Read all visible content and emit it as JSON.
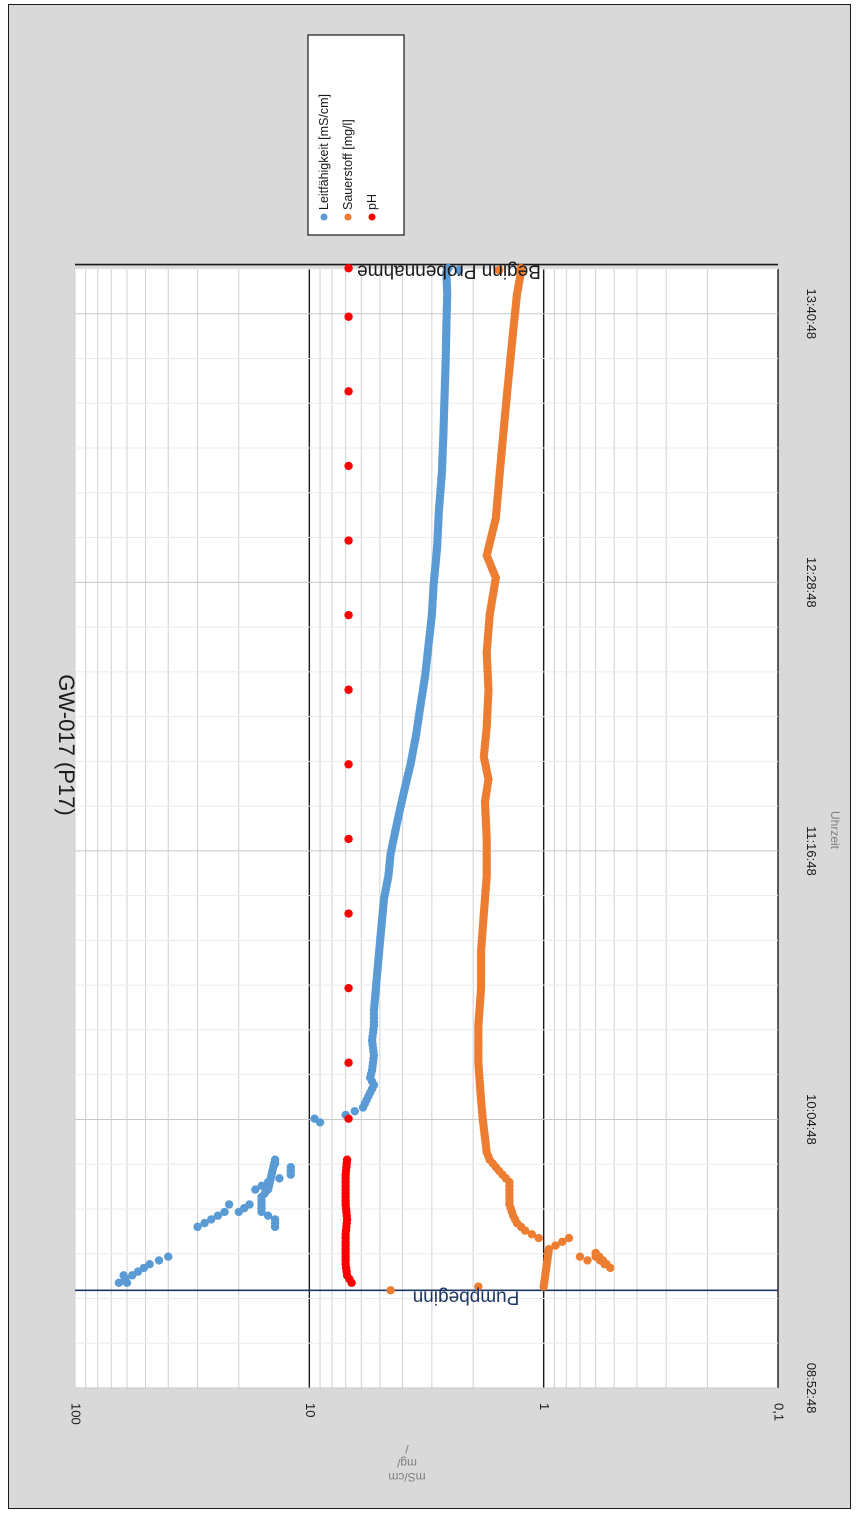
{
  "chart_data": {
    "type": "scatter",
    "title": "GW-017 (P17)",
    "xlabel": "Uhrzeit",
    "ylabel": "mS/cm\nmg/\n/",
    "yscale": "log",
    "ylim": [
      0.1,
      100
    ],
    "yticks": [
      "0,1",
      "1",
      "10",
      "100"
    ],
    "xlim": [
      "08:52:48",
      "13:52:48"
    ],
    "xticks": [
      "08:52:48",
      "10:04:48",
      "11:16:48",
      "12:28:48",
      "13:40:48"
    ],
    "grid": true,
    "legend_position": "top-right",
    "annotations": [
      {
        "label": "Pumpbeginn",
        "x": "09:19:00"
      },
      {
        "label": "Beginn Probennahme",
        "x": "13:54:00"
      }
    ],
    "series": [
      {
        "name": "Leitfähigkeit [mS/cm]",
        "color": "#5b9bd5",
        "points": [
          [
            "09:21:00",
            65
          ],
          [
            "09:21:00",
            60
          ],
          [
            "09:23:00",
            62
          ],
          [
            "09:23:00",
            57
          ],
          [
            "09:26:00",
            48
          ],
          [
            "09:28:00",
            40
          ],
          [
            "09:36:00",
            30
          ],
          [
            "09:37:00",
            28
          ],
          [
            "09:40:00",
            23
          ],
          [
            "09:40:00",
            20
          ],
          [
            "09:42:00",
            18
          ],
          [
            "09:42:00",
            22
          ],
          [
            "09:46:00",
            17
          ],
          [
            "09:48:00",
            15
          ],
          [
            "09:50:00",
            12
          ],
          [
            "09:52:00",
            12
          ],
          [
            "09:53:00",
            14
          ],
          [
            "09:54:00",
            14
          ],
          [
            "09:46:00",
            15
          ],
          [
            "09:44:00",
            16
          ],
          [
            "09:40:00",
            16
          ],
          [
            "09:39:00",
            15
          ],
          [
            "09:38:00",
            14
          ],
          [
            "09:36:00",
            14
          ],
          [
            "10:04:00",
            9.0
          ],
          [
            "10:05:00",
            9.5
          ],
          [
            "10:06:00",
            7.0
          ],
          [
            "10:07:00",
            6.4
          ],
          [
            "10:08:00",
            5.9
          ],
          [
            "10:09:00",
            5.8
          ],
          [
            "10:12:00",
            5.5
          ],
          [
            "10:14:00",
            5.3
          ],
          [
            "10:16:00",
            5.5
          ],
          [
            "10:18:00",
            5.4
          ],
          [
            "10:22:00",
            5.3
          ],
          [
            "10:26:00",
            5.4
          ],
          [
            "10:30:00",
            5.3
          ],
          [
            "10:34:00",
            5.3
          ],
          [
            "10:40:00",
            5.2
          ],
          [
            "10:46:00",
            5.1
          ],
          [
            "10:52:00",
            5.0
          ],
          [
            "10:58:00",
            4.9
          ],
          [
            "11:04:00",
            4.8
          ],
          [
            "11:10:00",
            4.6
          ],
          [
            "11:16:00",
            4.5
          ],
          [
            "11:22:00",
            4.3
          ],
          [
            "11:28:00",
            4.1
          ],
          [
            "11:34:00",
            3.9
          ],
          [
            "11:40:00",
            3.7
          ],
          [
            "11:48:00",
            3.5
          ],
          [
            "11:56:00",
            3.35
          ],
          [
            "12:04:00",
            3.2
          ],
          [
            "12:12:00",
            3.1
          ],
          [
            "12:20:00",
            3.0
          ],
          [
            "12:28:00",
            2.95
          ],
          [
            "12:38:00",
            2.85
          ],
          [
            "12:48:00",
            2.8
          ],
          [
            "12:58:00",
            2.72
          ],
          [
            "13:08:00",
            2.68
          ],
          [
            "13:18:00",
            2.65
          ],
          [
            "13:28:00",
            2.62
          ],
          [
            "13:38:00",
            2.6
          ],
          [
            "13:46:00",
            2.58
          ],
          [
            "13:52:00",
            2.6
          ],
          [
            "13:52:30",
            2.3
          ],
          [
            "13:53:00",
            2.55
          ]
        ]
      },
      {
        "name": "Sauerstoff [mg/l]",
        "color": "#ed7d31",
        "points": [
          [
            "09:19:00",
            4.5
          ],
          [
            "09:20:00",
            1.9
          ],
          [
            "09:27:00",
            0.65
          ],
          [
            "09:28:00",
            0.7
          ],
          [
            "09:28:00",
            0.6
          ],
          [
            "09:26:00",
            0.55
          ],
          [
            "09:25:00",
            0.52
          ],
          [
            "09:29:00",
            0.6
          ],
          [
            "09:33:00",
            0.78
          ],
          [
            "09:30:00",
            0.95
          ],
          [
            "09:20:00",
            1.0
          ],
          [
            "09:33:00",
            1.05
          ],
          [
            "09:35:00",
            1.2
          ],
          [
            "09:37:00",
            1.3
          ],
          [
            "09:39:00",
            1.35
          ],
          [
            "09:42:00",
            1.4
          ],
          [
            "09:44:00",
            1.4
          ],
          [
            "09:48:00",
            1.4
          ],
          [
            "09:50:00",
            1.5
          ],
          [
            "09:52:00",
            1.6
          ],
          [
            "09:54:00",
            1.7
          ],
          [
            "09:56:00",
            1.75
          ],
          [
            "10:05:00",
            1.82
          ],
          [
            "10:10:00",
            1.85
          ],
          [
            "10:20:00",
            1.9
          ],
          [
            "10:30:00",
            1.9
          ],
          [
            "10:40:00",
            1.85
          ],
          [
            "10:50:00",
            1.85
          ],
          [
            "11:00:00",
            1.8
          ],
          [
            "11:10:00",
            1.75
          ],
          [
            "11:20:00",
            1.75
          ],
          [
            "11:30:00",
            1.78
          ],
          [
            "11:36:00",
            1.72
          ],
          [
            "11:42:00",
            1.8
          ],
          [
            "11:50:00",
            1.75
          ],
          [
            "12:00:00",
            1.72
          ],
          [
            "12:10:00",
            1.75
          ],
          [
            "12:20:00",
            1.7
          ],
          [
            "12:30:00",
            1.6
          ],
          [
            "12:36:00",
            1.75
          ],
          [
            "12:46:00",
            1.6
          ],
          [
            "12:56:00",
            1.55
          ],
          [
            "13:06:00",
            1.5
          ],
          [
            "13:16:00",
            1.45
          ],
          [
            "13:26:00",
            1.4
          ],
          [
            "13:36:00",
            1.35
          ],
          [
            "13:46:00",
            1.3
          ],
          [
            "13:52:00",
            1.25
          ],
          [
            "13:53:00",
            1.25
          ],
          [
            "13:52:30",
            1.55
          ]
        ]
      },
      {
        "name": "pH",
        "color": "#ff0000",
        "points": [
          [
            "09:21:00",
            6.6
          ],
          [
            "09:23:00",
            6.9
          ],
          [
            "09:26:00",
            7.0
          ],
          [
            "09:30:00",
            7.0
          ],
          [
            "09:34:00",
            7.0
          ],
          [
            "09:38:00",
            6.9
          ],
          [
            "09:42:00",
            7.0
          ],
          [
            "09:46:00",
            7.0
          ],
          [
            "09:50:00",
            7.0
          ],
          [
            "09:54:00",
            6.9
          ],
          [
            "10:05:00",
            6.8
          ],
          [
            "10:20:00",
            6.8
          ],
          [
            "10:40:00",
            6.8
          ],
          [
            "11:00:00",
            6.8
          ],
          [
            "11:20:00",
            6.8
          ],
          [
            "11:40:00",
            6.8
          ],
          [
            "12:00:00",
            6.8
          ],
          [
            "12:20:00",
            6.8
          ],
          [
            "12:40:00",
            6.8
          ],
          [
            "13:00:00",
            6.8
          ],
          [
            "13:20:00",
            6.8
          ],
          [
            "13:40:00",
            6.8
          ],
          [
            "13:53:00",
            6.8
          ]
        ]
      }
    ]
  }
}
